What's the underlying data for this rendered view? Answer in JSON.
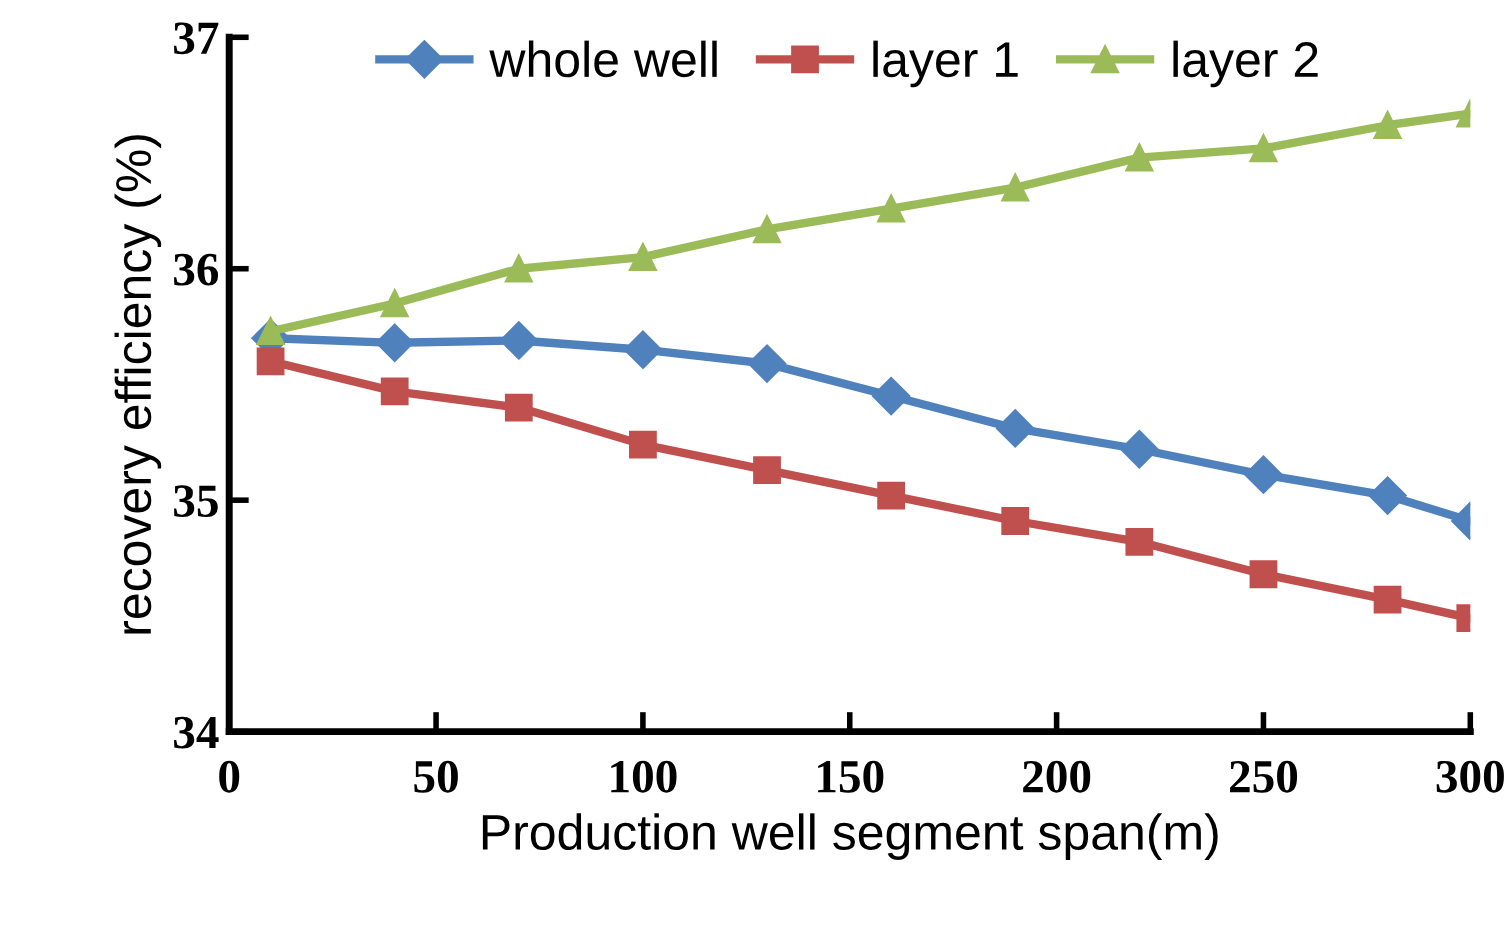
{
  "chart_data": {
    "type": "line",
    "xlabel": "Production well segment span(m)",
    "ylabel": "recovery efficiency (%)",
    "x": [
      10,
      40,
      70,
      100,
      130,
      160,
      190,
      220,
      250,
      280,
      300
    ],
    "series": [
      {
        "name": "whole well",
        "color": "#4f81bd",
        "marker": "diamond",
        "values": [
          35.7,
          35.68,
          35.69,
          35.65,
          35.59,
          35.45,
          35.31,
          35.22,
          35.11,
          35.02,
          34.91
        ]
      },
      {
        "name": "layer 1",
        "color": "#c0504d",
        "marker": "square",
        "values": [
          35.6,
          35.47,
          35.4,
          35.24,
          35.13,
          35.02,
          34.91,
          34.82,
          34.68,
          34.57,
          34.49
        ]
      },
      {
        "name": "layer 2",
        "color": "#9bbb59",
        "marker": "triangle",
        "values": [
          35.73,
          35.85,
          36.0,
          36.05,
          36.17,
          36.26,
          36.35,
          36.48,
          36.52,
          36.62,
          36.67
        ]
      }
    ],
    "xlim": [
      0,
      300
    ],
    "xticks": [
      0,
      50,
      100,
      150,
      200,
      250,
      300
    ],
    "ylim": [
      34,
      37
    ],
    "yticks": [
      34,
      35,
      36,
      37
    ],
    "grid": false,
    "legend": "top",
    "line_style": "solid"
  }
}
